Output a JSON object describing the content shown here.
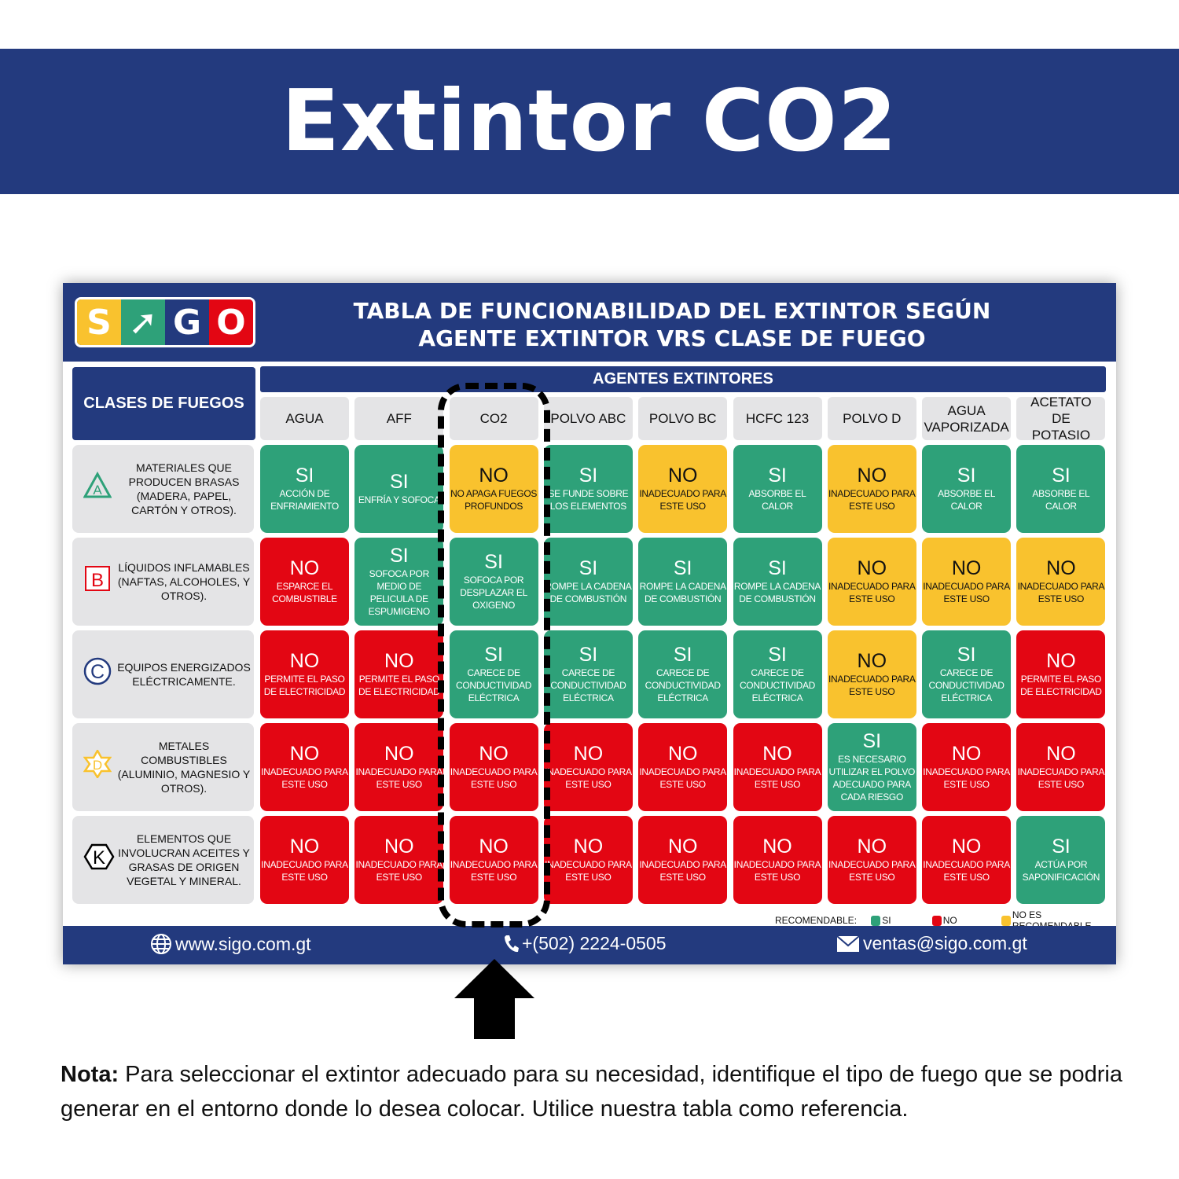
{
  "title": "Extintor CO2",
  "logo": {
    "letters": [
      "S",
      "➚",
      "G",
      "O"
    ],
    "colors": [
      "#f9c22e",
      "#2ea179",
      "#233a7e",
      "#e30613"
    ]
  },
  "header": {
    "line1": "TABLA DE FUNCIONABILIDAD DEL EXTINTOR SEGÚN",
    "line2": "AGENTE EXTINTOR VRS CLASE DE FUEGO"
  },
  "clases_label": "CLASES DE FUEGOS",
  "agentes_label": "AGENTES EXTINTORES",
  "columns": [
    "AGUA",
    "AFF",
    "CO2",
    "POLVO ABC",
    "POLVO BC",
    "HCFC 123",
    "POLVO D",
    "AGUA VAPORIZADA",
    "ACETATO DE POTASIO"
  ],
  "highlighted_column": "CO2",
  "rows": [
    {
      "class": "A",
      "icon": "triangle-a-icon",
      "label": "MATERIALES QUE PRODUCEN BRASAS (MADERA, PAPEL, CARTÓN Y OTROS).",
      "cells": [
        [
          "yes",
          "SI",
          "ACCIÓN DE ENFRIAMIENTO"
        ],
        [
          "yes",
          "SI",
          "ENFRÍA Y SOFOCA"
        ],
        [
          "warn",
          "NO",
          "NO APAGA FUEGOS PROFUNDOS"
        ],
        [
          "yes",
          "SI",
          "SE FUNDE SOBRE LOS ELEMENTOS"
        ],
        [
          "warn",
          "NO",
          "INADECUADO PARA ESTE USO"
        ],
        [
          "yes",
          "SI",
          "ABSORBE EL CALOR"
        ],
        [
          "warn",
          "NO",
          "INADECUADO PARA ESTE USO"
        ],
        [
          "yes",
          "SI",
          "ABSORBE EL CALOR"
        ],
        [
          "yes",
          "SI",
          "ABSORBE EL CALOR"
        ]
      ]
    },
    {
      "class": "B",
      "icon": "square-b-icon",
      "label": "LÍQUIDOS INFLAMABLES (NAFTAS, ALCOHOLES, Y OTROS).",
      "cells": [
        [
          "no",
          "NO",
          "ESPARCE EL COMBUSTIBLE"
        ],
        [
          "yes",
          "SI",
          "SOFOCA POR MEDIO DE PELICULA DE ESPUMIGENO"
        ],
        [
          "yes",
          "SI",
          "SOFOCA POR DESPLAZAR EL OXIGENO"
        ],
        [
          "yes",
          "SI",
          "ROMPE LA CADENA DE COMBUSTIÓN"
        ],
        [
          "yes",
          "SI",
          "ROMPE LA CADENA DE COMBUSTIÓN"
        ],
        [
          "yes",
          "SI",
          "ROMPE LA CADENA DE COMBUSTIÓN"
        ],
        [
          "warn",
          "NO",
          "INADECUADO PARA ESTE USO"
        ],
        [
          "warn",
          "NO",
          "INADECUADO PARA ESTE USO"
        ],
        [
          "warn",
          "NO",
          "INADECUADO PARA ESTE USO"
        ]
      ]
    },
    {
      "class": "C",
      "icon": "circle-c-icon",
      "label": "EQUIPOS ENERGIZADOS ELÉCTRICAMENTE.",
      "cells": [
        [
          "no",
          "NO",
          "PERMITE EL PASO DE ELECTRICIDAD"
        ],
        [
          "no",
          "NO",
          "PERMITE EL PASO DE ELECTRICIDAD"
        ],
        [
          "yes",
          "SI",
          "CARECE DE CONDUCTIVIDAD ELÉCTRICA"
        ],
        [
          "yes",
          "SI",
          "CARECE DE CONDUCTIVIDAD ELÉCTRICA"
        ],
        [
          "yes",
          "SI",
          "CARECE DE CONDUCTIVIDAD ELÉCTRICA"
        ],
        [
          "yes",
          "SI",
          "CARECE DE CONDUCTIVIDAD ELÉCTRICA"
        ],
        [
          "warn",
          "NO",
          "INADECUADO PARA ESTE USO"
        ],
        [
          "yes",
          "SI",
          "CARECE DE CONDUCTIVIDAD ELÉCTRICA"
        ],
        [
          "no",
          "NO",
          "PERMITE EL PASO DE ELECTRICIDAD"
        ]
      ]
    },
    {
      "class": "D",
      "icon": "star-d-icon",
      "label": "METALES COMBUSTIBLES (ALUMINIO, MAGNESIO Y OTROS).",
      "cells": [
        [
          "no",
          "NO",
          "INADECUADO PARA ESTE USO"
        ],
        [
          "no",
          "NO",
          "INADECUADO PARA ESTE USO"
        ],
        [
          "no",
          "NO",
          "INADECUADO PARA ESTE USO"
        ],
        [
          "no",
          "NO",
          "INADECUADO PARA ESTE USO"
        ],
        [
          "no",
          "NO",
          "INADECUADO PARA ESTE USO"
        ],
        [
          "no",
          "NO",
          "INADECUADO PARA ESTE USO"
        ],
        [
          "yes",
          "SI",
          "ES NECESARIO UTILIZAR EL POLVO ADECUADO PARA CADA RIESGO"
        ],
        [
          "no",
          "NO",
          "INADECUADO PARA ESTE USO"
        ],
        [
          "no",
          "NO",
          "INADECUADO PARA ESTE USO"
        ]
      ]
    },
    {
      "class": "K",
      "icon": "hexagon-k-icon",
      "label": "ELEMENTOS QUE INVOLUCRAN ACEITES Y GRASAS DE ORIGEN VEGETAL Y MINERAL.",
      "cells": [
        [
          "no",
          "NO",
          "INADECUADO PARA ESTE USO"
        ],
        [
          "no",
          "NO",
          "INADECUADO PARA ESTE USO"
        ],
        [
          "no",
          "NO",
          "INADECUADO PARA ESTE USO"
        ],
        [
          "no",
          "NO",
          "INADECUADO PARA ESTE USO"
        ],
        [
          "no",
          "NO",
          "INADECUADO PARA ESTE USO"
        ],
        [
          "no",
          "NO",
          "INADECUADO PARA ESTE USO"
        ],
        [
          "no",
          "NO",
          "INADECUADO PARA ESTE USO"
        ],
        [
          "no",
          "NO",
          "INADECUADO PARA ESTE USO"
        ],
        [
          "yes",
          "SI",
          "ACTÚA POR SAPONIFICACIÓN"
        ]
      ]
    }
  ],
  "legend": {
    "label": "RECOMENDABLE:",
    "yes": "SI",
    "no": "NO",
    "warn": "NO ES RECOMENDABLE"
  },
  "colors": {
    "yes": "#2ea179",
    "no": "#e30613",
    "warn": "#f9c22e",
    "brand_blue": "#233a7e"
  },
  "footer": {
    "web": "www.sigo.com.gt",
    "phone": "+(502) 2224-0505",
    "email": "ventas@sigo.com.gt"
  },
  "nota": {
    "bold": "Nota:",
    "text": " Para seleccionar el extintor adecuado para su necesidad, identifique el tipo de fuego que se podria generar en el entorno donde lo desea colocar. Utilice nuestra tabla como referencia."
  }
}
